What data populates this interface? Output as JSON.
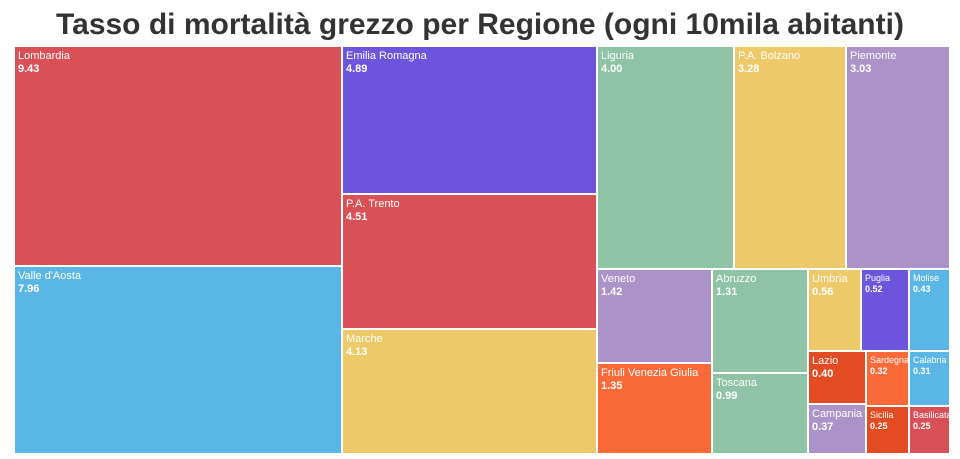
{
  "chart_data": {
    "type": "treemap",
    "title": "Tasso di mortalità grezzo per Regione (ogni 10mila abitanti)",
    "items": [
      {
        "name": "Lombardia",
        "value": "9.43",
        "color": "#d95156"
      },
      {
        "name": "Valle d'Aosta",
        "value": "7.96",
        "color": "#5ab6e4"
      },
      {
        "name": "Emilia Romagna",
        "value": "4.89",
        "color": "#6c55dc"
      },
      {
        "name": "P.A. Trento",
        "value": "4.51",
        "color": "#d95156"
      },
      {
        "name": "Marche",
        "value": "4.13",
        "color": "#eec96a"
      },
      {
        "name": "Liguria",
        "value": "4.00",
        "color": "#8ec3a6"
      },
      {
        "name": "P.A. Bolzano",
        "value": "3.28",
        "color": "#eec96a"
      },
      {
        "name": "Piemonte",
        "value": "3.03",
        "color": "#ab92c7"
      },
      {
        "name": "Veneto",
        "value": "1.42",
        "color": "#ab92c7"
      },
      {
        "name": "Friuli Venezia Giulia",
        "value": "1.35",
        "color": "#fa6a39"
      },
      {
        "name": "Abruzzo",
        "value": "1.31",
        "color": "#8ec3a6"
      },
      {
        "name": "Toscana",
        "value": "0.99",
        "color": "#8ec3a6"
      },
      {
        "name": "Umbria",
        "value": "0.56",
        "color": "#eec96a"
      },
      {
        "name": "Puglia",
        "value": "0.52",
        "color": "#6c55dc"
      },
      {
        "name": "Molise",
        "value": "0.43",
        "color": "#5ab6e4"
      },
      {
        "name": "Lazio",
        "value": "0.40",
        "color": "#e34b22"
      },
      {
        "name": "Sardegna",
        "value": "0.32",
        "color": "#fa6a39"
      },
      {
        "name": "Calabria",
        "value": "0.31",
        "color": "#5ab6e4"
      },
      {
        "name": "Campania",
        "value": "0.37",
        "color": "#ab92c7"
      },
      {
        "name": "Sicilia",
        "value": "0.25",
        "color": "#e34b22"
      },
      {
        "name": "Basilicata",
        "value": "0.25",
        "color": "#d95156"
      }
    ]
  }
}
